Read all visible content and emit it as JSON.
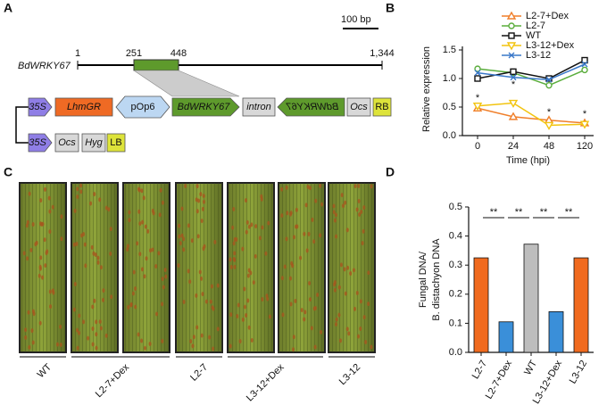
{
  "figure": {
    "panel_labels": [
      "A",
      "B",
      "C",
      "D"
    ]
  },
  "diagram": {
    "scale_bar": "100 bp",
    "gene": "BdWRKY67",
    "positions": [
      "1",
      "251",
      "448",
      "1,344"
    ],
    "construct_1": [
      "35S",
      "LhmGR",
      "pOp6",
      "BdWRKY67",
      "intron",
      "BdWRKY67",
      "Ocs",
      "RB"
    ],
    "construct_2": [
      "35S",
      "Ocs",
      "Hyg",
      "LB"
    ]
  },
  "photos": {
    "labels": [
      "WT",
      "L2-7+Dex",
      "L2-7",
      "L3-12+Dex",
      "L3-12"
    ]
  },
  "chart_data": [
    {
      "type": "line",
      "ylabel": "Relative expression",
      "xlabel": "Time (hpi)",
      "categories": [
        "0",
        "24",
        "48",
        "120"
      ],
      "series": [
        {
          "name": "L2-7+Dex",
          "color": "#f07f2a",
          "marker": "triangle",
          "values": [
            0.48,
            0.33,
            0.27,
            0.22
          ]
        },
        {
          "name": "L2-7",
          "color": "#5aad3c",
          "marker": "circle",
          "values": [
            1.17,
            1.1,
            0.88,
            1.15
          ]
        },
        {
          "name": "WT",
          "color": "#111111",
          "marker": "square",
          "values": [
            1.0,
            1.12,
            1.0,
            1.32
          ]
        },
        {
          "name": "L3-12+Dex",
          "color": "#f2c40f",
          "marker": "triangle-down",
          "values": [
            0.52,
            0.57,
            0.18,
            0.2
          ]
        },
        {
          "name": "L3-12",
          "color": "#3a78c9",
          "marker": "x",
          "values": [
            1.1,
            1.02,
            0.98,
            1.25
          ]
        }
      ],
      "ylim": [
        0,
        1.5
      ],
      "yticks": [
        {
          "value": 0,
          "label": "0.0"
        },
        {
          "value": 0.5,
          "label": "0.5"
        },
        {
          "value": 1,
          "label": "1.0"
        },
        {
          "value": 1.5,
          "label": "1.5"
        }
      ],
      "annotations": [
        "*",
        "*",
        "*",
        "*"
      ]
    },
    {
      "type": "bar",
      "ylabel": [
        "Fungal DNA/",
        "B. distachyon DNA"
      ],
      "categories": [
        "L2-7",
        "L2-7+Dex",
        "WT",
        "L3-12+Dex",
        "L3-12"
      ],
      "values": [
        0.325,
        0.105,
        0.372,
        0.14,
        0.325
      ],
      "colors": [
        "#f06a1e",
        "#3a8fd9",
        "#bdbdbd",
        "#3a8fd9",
        "#f06a1e"
      ],
      "ylim": [
        0,
        0.5
      ],
      "yticks": [
        {
          "value": 0,
          "label": "0.0"
        },
        {
          "value": 0.1,
          "label": "0.1"
        },
        {
          "value": 0.2,
          "label": "0.2"
        },
        {
          "value": 0.3,
          "label": "0.3"
        },
        {
          "value": 0.4,
          "label": "0.4"
        },
        {
          "value": 0.5,
          "label": "0.5"
        }
      ],
      "annotations": [
        "**",
        "**",
        "**",
        "**"
      ]
    }
  ]
}
